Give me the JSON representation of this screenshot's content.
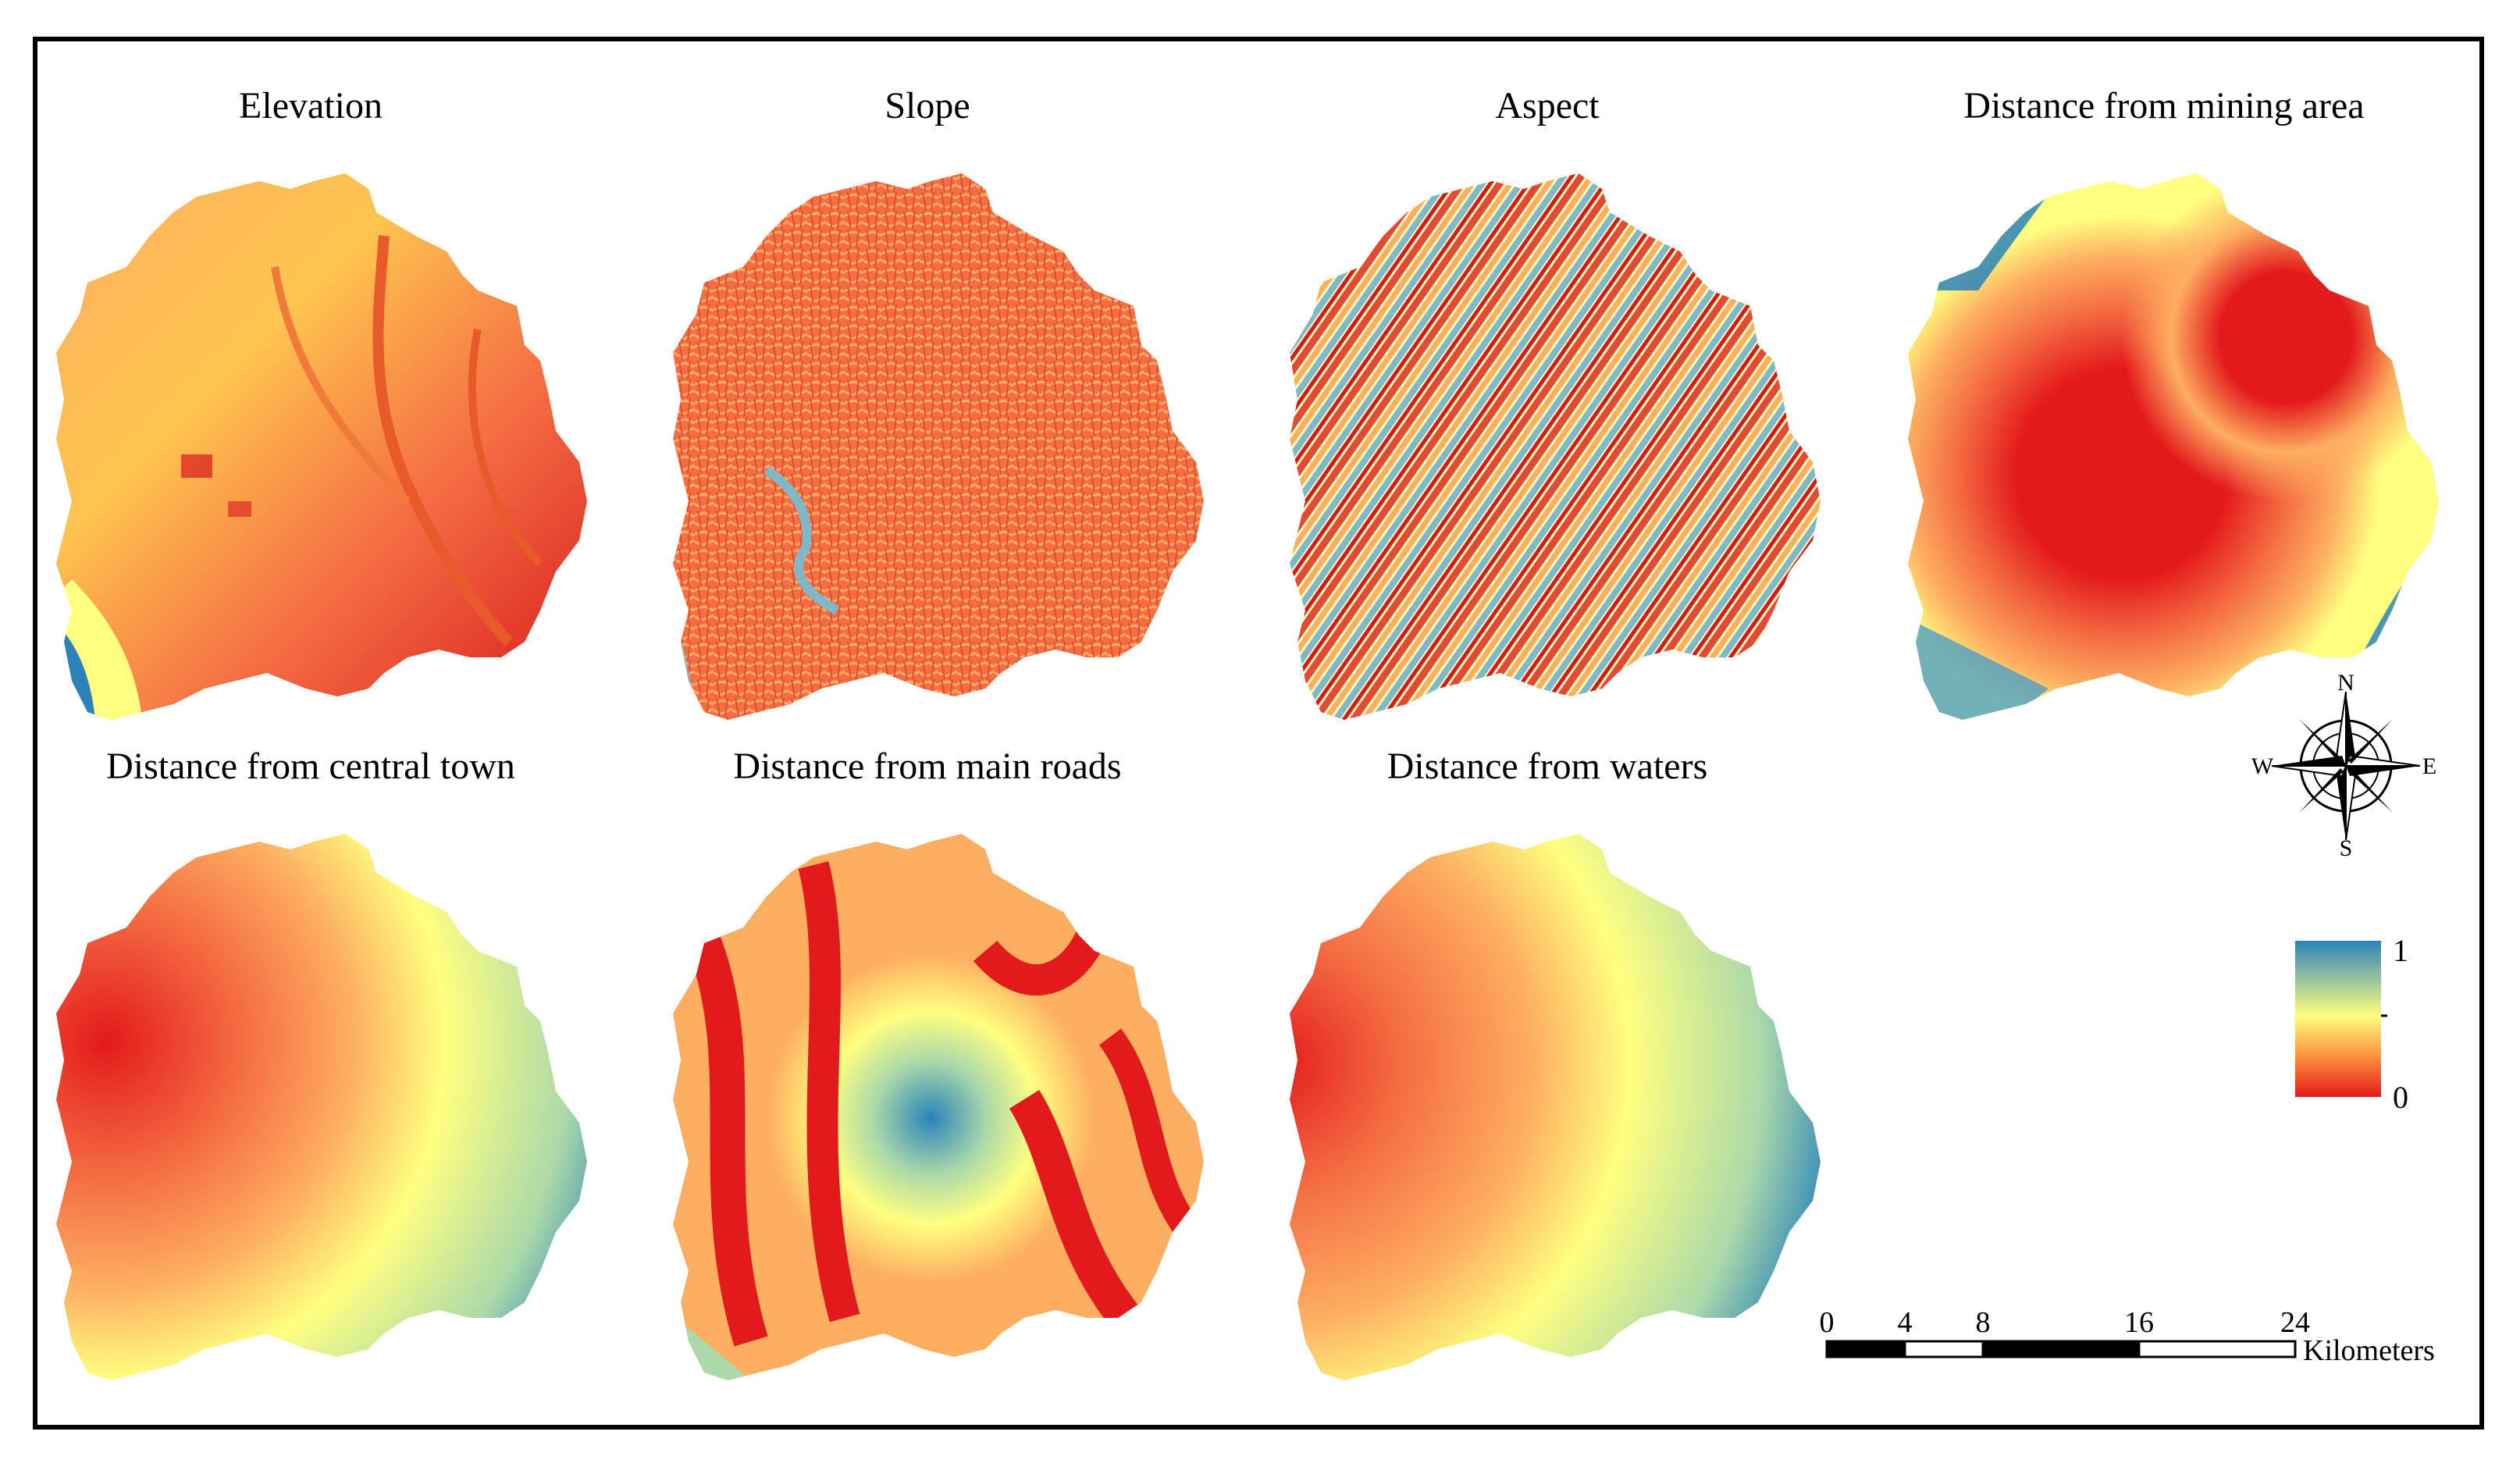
{
  "maps": [
    {
      "id": "elevation",
      "title": "Elevation"
    },
    {
      "id": "slope",
      "title": "Slope"
    },
    {
      "id": "aspect",
      "title": "Aspect"
    },
    {
      "id": "mining",
      "title": "Distance from mining area"
    },
    {
      "id": "town",
      "title": "Distance from central town"
    },
    {
      "id": "roads",
      "title": "Distance from main roads"
    },
    {
      "id": "waters",
      "title": "Distance from waters"
    }
  ],
  "compass": {
    "n": "N",
    "s": "S",
    "e": "E",
    "w": "W"
  },
  "legend": {
    "max_label": "1",
    "min_label": "0",
    "colors": [
      "#2c7bb6",
      "#ffff8c",
      "#d7191c"
    ]
  },
  "scalebar": {
    "ticks": [
      "0",
      "4",
      "8",
      "16",
      "24"
    ],
    "unit": "Kilometers"
  },
  "palette": {
    "low": "#e31a1c",
    "mid_low": "#fd8d3c",
    "mid": "#ffff80",
    "high": "#2b83ba"
  }
}
